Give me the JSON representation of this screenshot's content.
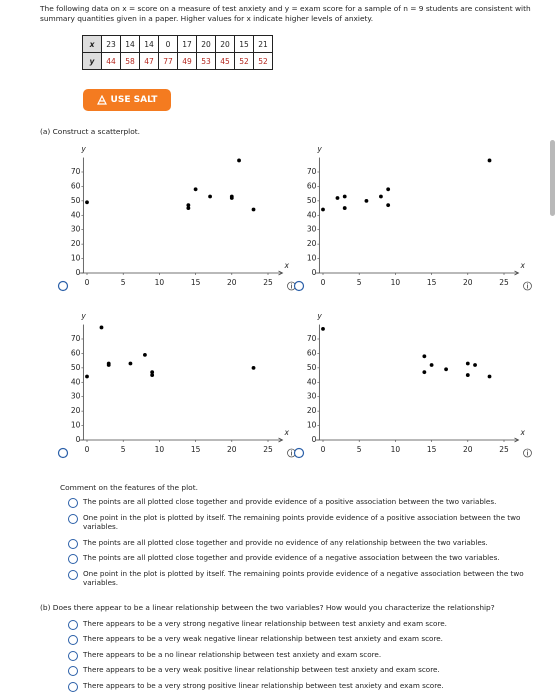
{
  "intro": "The following data on x = score on a measure of test anxiety and y = exam score for a sample of n = 9 students are consistent with summary quantities given in a paper. Higher values for x indicate higher levels of anxiety.",
  "table": {
    "rows": [
      [
        "x",
        23,
        14,
        14,
        0,
        17,
        20,
        20,
        15,
        21
      ],
      [
        "y",
        44,
        58,
        47,
        77,
        49,
        53,
        45,
        52,
        52
      ]
    ]
  },
  "salt_button": "USE SALT",
  "part_a": {
    "prompt": "(a) Construct a scatterplot.",
    "comment_prompt": "Comment on the features of the plot.",
    "options": [
      "The points are all plotted close together and provide evidence of a positive association between the two variables.",
      "One point in the plot is plotted by itself. The remaining points provide evidence of a positive association between the two variables.",
      "The points are all plotted close together and provide no evidence of any relationship between the two variables.",
      "The points are all plotted close together and provide evidence of a negative association between the two variables.",
      "One point in the plot is plotted by itself. The remaining points provide evidence of a negative association between the two variables."
    ]
  },
  "part_b": {
    "prompt": "(b) Does there appear to be a linear relationship between the two variables? How would you characterize the relationship?",
    "options": [
      "There appears to be a very strong negative linear relationship between test anxiety and exam score.",
      "There appears to be a very weak negative linear relationship between test anxiety and exam score.",
      "There appears to be a no linear relationship between test anxiety and exam score.",
      "There appears to be a very weak positive linear relationship between test anxiety and exam score.",
      "There appears to be a very strong positive linear relationship between test anxiety and exam score."
    ]
  },
  "chart_data": [
    {
      "type": "scatter",
      "x_label": "x",
      "y_label": "y",
      "color": "#000000",
      "x": [
        0,
        14,
        14,
        15,
        17,
        20,
        20,
        21,
        23
      ],
      "y": [
        49,
        47,
        45,
        58,
        53,
        53,
        52,
        78,
        44
      ],
      "xlim": [
        -1,
        27
      ],
      "ylim": [
        0,
        80
      ],
      "xticks": [
        0,
        5,
        10,
        15,
        20,
        25
      ],
      "yticks": [
        0,
        10,
        20,
        30,
        40,
        50,
        60,
        70
      ]
    },
    {
      "type": "scatter",
      "x_label": "x",
      "y_label": "y",
      "color": "#000000",
      "x": [
        0,
        2,
        3,
        3,
        6,
        8,
        9,
        9,
        23
      ],
      "y": [
        44,
        52,
        53,
        45,
        50,
        53,
        58,
        47,
        78
      ],
      "xlim": [
        -1,
        27
      ],
      "ylim": [
        0,
        80
      ],
      "xticks": [
        0,
        5,
        10,
        15,
        20,
        25
      ],
      "yticks": [
        0,
        10,
        20,
        30,
        40,
        50,
        60,
        70
      ]
    },
    {
      "type": "scatter",
      "x_label": "x",
      "y_label": "y",
      "color": "#000000",
      "x": [
        0,
        2,
        3,
        3,
        6,
        8,
        9,
        9,
        23
      ],
      "y": [
        44,
        78,
        53,
        52,
        53,
        59,
        47,
        45,
        50
      ],
      "xlim": [
        -1,
        27
      ],
      "ylim": [
        0,
        80
      ],
      "xticks": [
        0,
        5,
        10,
        15,
        20,
        25
      ],
      "yticks": [
        0,
        10,
        20,
        30,
        40,
        50,
        60,
        70
      ]
    },
    {
      "type": "scatter",
      "x_label": "x",
      "y_label": "y",
      "color": "#000000",
      "x": [
        0,
        14,
        14,
        15,
        17,
        20,
        20,
        21,
        23
      ],
      "y": [
        77,
        58,
        47,
        52,
        49,
        53,
        45,
        52,
        44
      ],
      "xlim": [
        -1,
        27
      ],
      "ylim": [
        0,
        80
      ],
      "xticks": [
        0,
        5,
        10,
        15,
        20,
        25
      ],
      "yticks": [
        0,
        10,
        20,
        30,
        40,
        50,
        60,
        70
      ]
    }
  ]
}
